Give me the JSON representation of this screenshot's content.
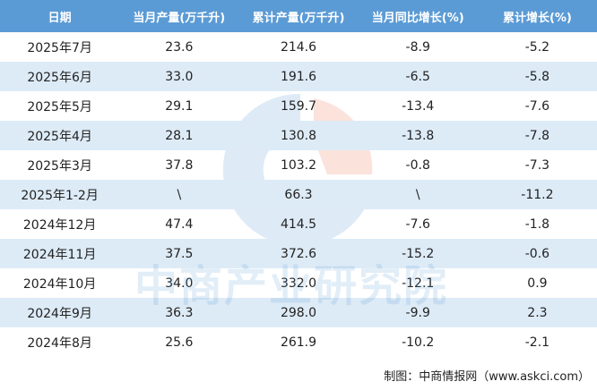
{
  "table": {
    "header": [
      "日期",
      "当月产量(万千升)",
      "累计产量(万千升)",
      "当月同比增长(%)",
      "累计增长(%)"
    ],
    "rows": [
      [
        "2025年7月",
        "23.6",
        "214.6",
        "-8.9",
        "-5.2"
      ],
      [
        "2025年6月",
        "33.0",
        "191.6",
        "-6.5",
        "-5.8"
      ],
      [
        "2025年5月",
        "29.1",
        "159.7",
        "-13.4",
        "-7.6"
      ],
      [
        "2025年4月",
        "28.1",
        "130.8",
        "-13.8",
        "-7.8"
      ],
      [
        "2025年3月",
        "37.8",
        "103.2",
        "-0.8",
        "-7.3"
      ],
      [
        "2025年1-2月",
        "\\",
        "66.3",
        "\\",
        "-11.2"
      ],
      [
        "2024年12月",
        "47.4",
        "414.5",
        "-7.6",
        "-1.8"
      ],
      [
        "2024年11月",
        "37.5",
        "372.6",
        "-15.2",
        "-0.6"
      ],
      [
        "2024年10月",
        "34.0",
        "332.0",
        "-12.1",
        "0.9"
      ],
      [
        "2024年9月",
        "36.3",
        "298.0",
        "-9.9",
        "2.3"
      ],
      [
        "2024年8月",
        "25.6",
        "261.9",
        "-10.2",
        "-2.1"
      ]
    ]
  },
  "watermark": "中商产业研究院",
  "footer": "制图：中商情报网（www.askci.com）"
}
